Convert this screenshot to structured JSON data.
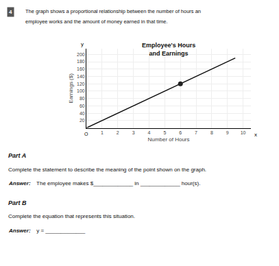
{
  "chart_data": {
    "type": "line",
    "title": "Employee's Hours\nand Earnings",
    "x_label": "Number of Hours",
    "y_label": "Earnings ($)",
    "xlim": [
      0,
      10.5
    ],
    "ylim": [
      0,
      215
    ],
    "xticks": [
      1,
      2,
      3,
      4,
      5,
      6,
      7,
      8,
      9,
      10
    ],
    "yticks": [
      20,
      40,
      60,
      80,
      100,
      120,
      140,
      160,
      180,
      200
    ],
    "grid": true,
    "series": [
      {
        "type": "line",
        "x": [
          0,
          9.5
        ],
        "values": [
          0,
          190
        ],
        "color": "#111111"
      },
      {
        "type": "scatter",
        "x": [
          6
        ],
        "values": [
          120
        ],
        "color": "#222222",
        "marker": "circle"
      }
    ],
    "annotations": [
      "4",
      "The graph shows a proportional relationship between the number of hours an",
      "employee works and the amount of money earned in that time.",
      "O",
      "x",
      "y",
      "Part A",
      "Complete the statement to describe the meaning of the point shown on the graph.",
      "Answer:",
      " The employee makes $_____________ in _____________ hour(s).",
      "Part B",
      "Complete the equation that represents this situation.",
      "Answer:",
      " y = _____________"
    ]
  }
}
